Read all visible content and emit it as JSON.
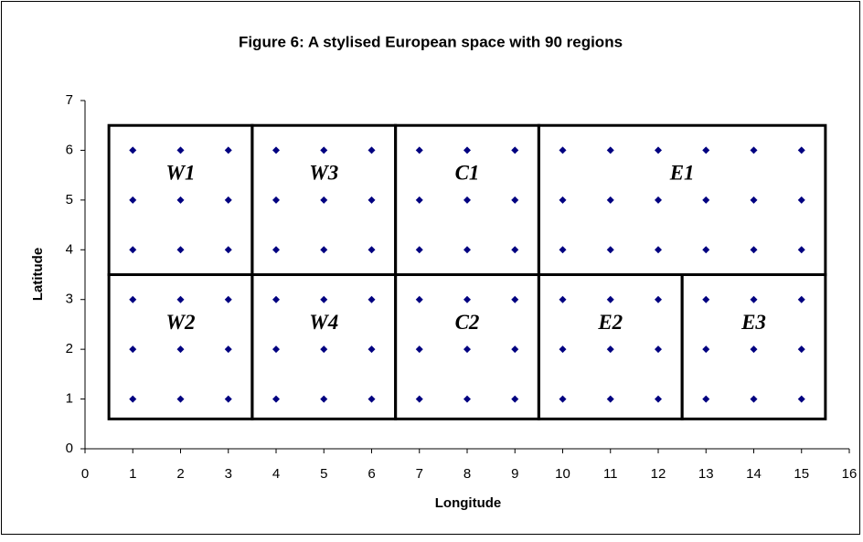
{
  "chart_data": {
    "type": "scatter",
    "title": "Figure 6: A stylised European space with 90 regions",
    "x_label": "Longitude",
    "y_label": "Latitude",
    "x": [
      1,
      2,
      3,
      4,
      5,
      6,
      7,
      8,
      9,
      10,
      11,
      12,
      13,
      14,
      15,
      1,
      2,
      3,
      4,
      5,
      6,
      7,
      8,
      9,
      10,
      11,
      12,
      13,
      14,
      15,
      1,
      2,
      3,
      4,
      5,
      6,
      7,
      8,
      9,
      10,
      11,
      12,
      13,
      14,
      15,
      1,
      2,
      3,
      4,
      5,
      6,
      7,
      8,
      9,
      10,
      11,
      12,
      13,
      14,
      15,
      1,
      2,
      3,
      4,
      5,
      6,
      7,
      8,
      9,
      10,
      11,
      12,
      13,
      14,
      15,
      1,
      2,
      3,
      4,
      5,
      6,
      7,
      8,
      9,
      10,
      11,
      12,
      13,
      14,
      15
    ],
    "values": [
      6,
      6,
      6,
      6,
      6,
      6,
      6,
      6,
      6,
      6,
      6,
      6,
      6,
      6,
      6,
      5,
      5,
      5,
      5,
      5,
      5,
      5,
      5,
      5,
      5,
      5,
      5,
      5,
      5,
      5,
      4,
      4,
      4,
      4,
      4,
      4,
      4,
      4,
      4,
      4,
      4,
      4,
      4,
      4,
      4,
      3,
      3,
      3,
      3,
      3,
      3,
      3,
      3,
      3,
      3,
      3,
      3,
      3,
      3,
      3,
      2,
      2,
      2,
      2,
      2,
      2,
      2,
      2,
      2,
      2,
      2,
      2,
      2,
      2,
      2,
      1,
      1,
      1,
      1,
      1,
      1,
      1,
      1,
      1,
      1,
      1,
      1,
      1,
      1,
      1
    ],
    "color": "#000080",
    "xlim": [
      0,
      16
    ],
    "xticks": [
      0,
      1,
      2,
      3,
      4,
      5,
      6,
      7,
      8,
      9,
      10,
      11,
      12,
      13,
      14,
      15,
      16
    ],
    "ylim": [
      0,
      7
    ],
    "yticks": [
      0,
      1,
      2,
      3,
      4,
      5,
      6,
      7
    ],
    "regions": [
      {
        "label": "W1",
        "xlim": [
          0.5,
          3.5
        ],
        "ylim": [
          3.5,
          6.5
        ]
      },
      {
        "label": "W3",
        "xlim": [
          3.5,
          6.5
        ],
        "ylim": [
          3.5,
          6.5
        ]
      },
      {
        "label": "C1",
        "xlim": [
          6.5,
          9.5
        ],
        "ylim": [
          3.5,
          6.5
        ]
      },
      {
        "label": "E1",
        "xlim": [
          9.5,
          15.5
        ],
        "ylim": [
          3.5,
          6.5
        ]
      },
      {
        "label": "W2",
        "xlim": [
          0.5,
          3.5
        ],
        "ylim": [
          0.6,
          3.5
        ]
      },
      {
        "label": "W4",
        "xlim": [
          3.5,
          6.5
        ],
        "ylim": [
          0.6,
          3.5
        ]
      },
      {
        "label": "C2",
        "xlim": [
          6.5,
          9.5
        ],
        "ylim": [
          0.6,
          3.5
        ]
      },
      {
        "label": "E2",
        "xlim": [
          9.5,
          12.5
        ],
        "ylim": [
          0.6,
          3.5
        ]
      },
      {
        "label": "E3",
        "xlim": [
          12.5,
          15.5
        ],
        "ylim": [
          0.6,
          3.5
        ]
      }
    ]
  }
}
